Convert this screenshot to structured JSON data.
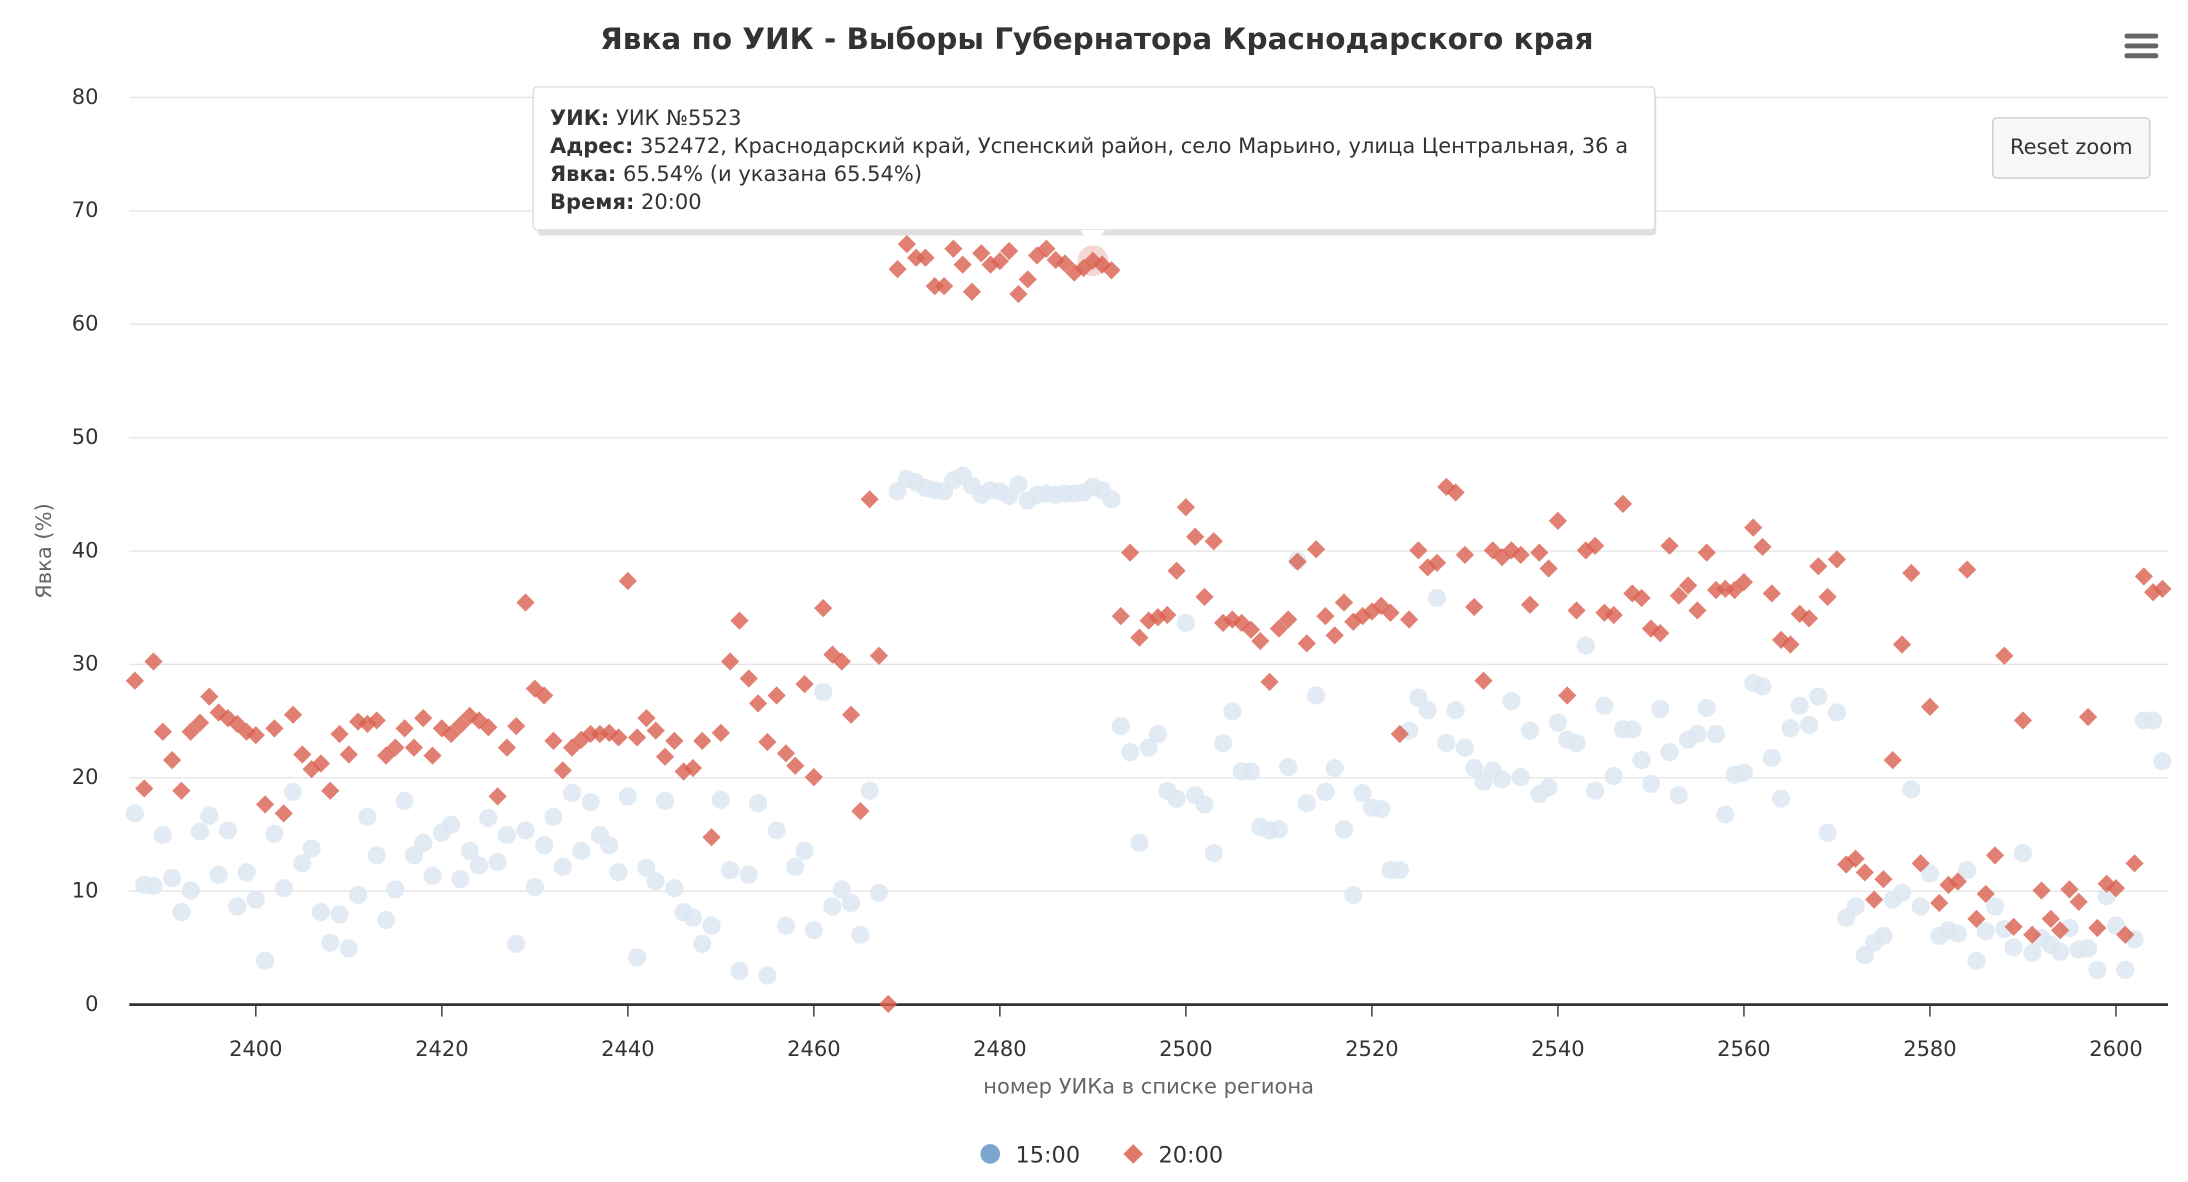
{
  "chart_data": {
    "type": "scatter",
    "title": "Явка по УИК - Выборы Губернатора Краснодарского края",
    "xlabel": "номер УИКа в списке региона",
    "ylabel": "Явка (%)",
    "xlim": [
      2386.4,
      2605.6
    ],
    "ylim": [
      0,
      80
    ],
    "x_ticks": [
      2400,
      2420,
      2440,
      2460,
      2480,
      2500,
      2520,
      2540,
      2560,
      2580,
      2600
    ],
    "y_ticks": [
      0,
      10,
      20,
      30,
      40,
      50,
      60,
      70,
      80
    ],
    "grid": true,
    "legend_position": "bottom-center",
    "x_start": 2387,
    "series": [
      {
        "name": "15:00",
        "marker": "circle",
        "color": "#7ba6cf",
        "faded_color": "#dde7f1",
        "values": [
          16.8,
          10.5,
          10.4,
          14.9,
          11.1,
          8.1,
          10,
          15.2,
          16.6,
          11.4,
          15.3,
          8.6,
          11.6,
          9.2,
          3.8,
          15,
          10.2,
          18.7,
          12.4,
          13.7,
          8.1,
          5.4,
          7.9,
          4.9,
          9.6,
          16.5,
          13.1,
          7.4,
          10.1,
          17.9,
          13.1,
          14.2,
          11.3,
          15.1,
          15.8,
          11,
          13.5,
          12.2,
          16.4,
          12.5,
          14.9,
          5.3,
          15.3,
          10.3,
          14,
          16.5,
          12.1,
          18.6,
          13.5,
          17.8,
          14.9,
          14,
          11.6,
          18.3,
          4.1,
          12,
          10.8,
          17.9,
          10.2,
          8.1,
          7.6,
          5.3,
          6.9,
          18,
          11.8,
          2.9,
          11.4,
          17.7,
          2.5,
          15.3,
          6.9,
          12.1,
          13.5,
          6.5,
          27.5,
          8.6,
          10.1,
          8.9,
          6.1,
          18.8,
          9.8,
          null,
          45.2,
          46.3,
          46,
          45.5,
          45.3,
          45.2,
          46.2,
          46.6,
          45.7,
          44.9,
          45.3,
          45.2,
          44.8,
          45.8,
          44.4,
          44.9,
          45,
          44.9,
          45,
          45,
          45.1,
          45.6,
          45.3,
          44.5,
          24.5,
          22.2,
          14.2,
          22.6,
          23.8,
          18.8,
          18.1,
          33.6,
          18.4,
          17.6,
          13.3,
          23,
          25.8,
          20.5,
          20.5,
          15.6,
          15.3,
          15.4,
          20.9,
          39.1,
          17.7,
          27.2,
          18.7,
          20.8,
          15.4,
          9.6,
          18.6,
          17.3,
          17.2,
          11.8,
          11.8,
          24.1,
          27,
          25.9,
          35.8,
          23,
          25.9,
          22.6,
          20.8,
          19.6,
          20.6,
          19.8,
          26.7,
          20,
          24.1,
          18.5,
          19.1,
          24.8,
          23.3,
          23,
          31.6,
          18.8,
          26.3,
          20.1,
          24.2,
          24.2,
          21.5,
          19.4,
          26,
          22.2,
          18.4,
          23.3,
          23.8,
          26.1,
          23.8,
          16.7,
          20.2,
          20.4,
          28.3,
          28,
          21.7,
          18.1,
          24.3,
          26.3,
          24.6,
          27.1,
          15.1,
          25.7,
          7.6,
          8.6,
          4.3,
          5.4,
          6,
          9.2,
          9.8,
          18.9,
          8.6,
          11.5,
          6,
          6.5,
          6.2,
          11.8,
          3.8,
          6.4,
          8.6,
          6.6,
          5,
          13.3,
          4.5,
          5.8,
          5.2,
          4.6,
          6.7,
          4.8,
          4.9,
          3,
          9.5,
          6.9,
          3,
          5.7,
          25,
          25,
          21.4
        ]
      },
      {
        "name": "20:00",
        "marker": "diamond",
        "color": "#d9604f",
        "values": [
          28.5,
          19,
          30.2,
          24,
          21.5,
          18.8,
          24,
          24.8,
          27.1,
          25.7,
          25.2,
          24.7,
          24,
          23.7,
          17.6,
          24.3,
          16.8,
          25.5,
          22,
          20.7,
          21.2,
          18.8,
          23.8,
          22,
          24.9,
          24.7,
          25,
          21.9,
          22.6,
          24.3,
          22.6,
          25.2,
          21.9,
          24.3,
          23.8,
          24.6,
          25.4,
          25,
          24.4,
          18.3,
          22.6,
          24.5,
          35.4,
          27.8,
          27.2,
          23.2,
          20.6,
          22.6,
          23.3,
          23.8,
          23.8,
          23.9,
          23.5,
          37.3,
          23.5,
          25.2,
          24.1,
          21.8,
          23.2,
          20.5,
          20.8,
          23.2,
          14.7,
          23.9,
          30.2,
          33.8,
          28.7,
          26.5,
          23.1,
          27.2,
          22.1,
          21,
          28.2,
          20,
          34.9,
          30.8,
          30.2,
          25.5,
          17,
          44.5,
          30.7,
          0,
          64.8,
          67,
          65.8,
          65.8,
          63.3,
          63.3,
          66.6,
          65.2,
          62.8,
          66.2,
          65.2,
          65.5,
          66.4,
          62.6,
          63.9,
          66,
          66.6,
          65.6,
          65.3,
          64.5,
          64.9,
          65.54,
          65.2,
          64.7,
          34.2,
          39.8,
          32.3,
          33.8,
          34.1,
          34.3,
          38.2,
          43.8,
          41.2,
          35.9,
          40.8,
          33.6,
          33.9,
          33.6,
          33,
          32,
          28.4,
          33.1,
          33.9,
          39,
          31.8,
          40.1,
          34.2,
          32.5,
          35.4,
          33.7,
          34.2,
          34.6,
          35.1,
          34.5,
          23.8,
          33.9,
          40,
          38.5,
          38.9,
          45.6,
          45.1,
          39.6,
          35,
          28.5,
          40,
          39.4,
          40,
          39.6,
          35.2,
          39.8,
          38.4,
          42.6,
          27.2,
          34.7,
          40,
          40.4,
          34.5,
          34.3,
          44.1,
          36.2,
          35.8,
          33.1,
          32.7,
          40.4,
          36,
          36.9,
          34.7,
          39.8,
          36.5,
          36.6,
          36.5,
          37.2,
          42,
          40.3,
          36.2,
          32.1,
          31.7,
          34.4,
          34,
          38.6,
          35.9,
          39.2,
          12.3,
          12.8,
          11.6,
          9.2,
          11,
          21.5,
          31.7,
          38,
          12.4,
          26.2,
          8.9,
          10.5,
          10.8,
          38.3,
          7.5,
          9.7,
          13.1,
          30.7,
          6.8,
          25,
          6.1,
          10,
          7.5,
          6.5,
          10.1,
          9,
          25.3,
          6.7,
          10.6,
          10.2,
          6.1,
          12.4,
          37.7,
          36.3,
          36.6
        ]
      }
    ],
    "hovered_point": {
      "series": "20:00",
      "x": 2490,
      "y": 65.54
    }
  },
  "tooltip": {
    "uik_label": "УИК:",
    "uik_value": " УИК №5523",
    "address_label": "Адрес:",
    "address_value": " 352472, Краснодарский край, Успенский район, село Марьино, улица Центральная, 36 а",
    "turnout_label": "Явка:",
    "turnout_value": " 65.54% (и указана 65.54%)",
    "time_label": "Время:",
    "time_value": " 20:00"
  },
  "controls": {
    "reset_zoom": "Reset zoom",
    "menu_icon": "hamburger-menu-icon"
  }
}
